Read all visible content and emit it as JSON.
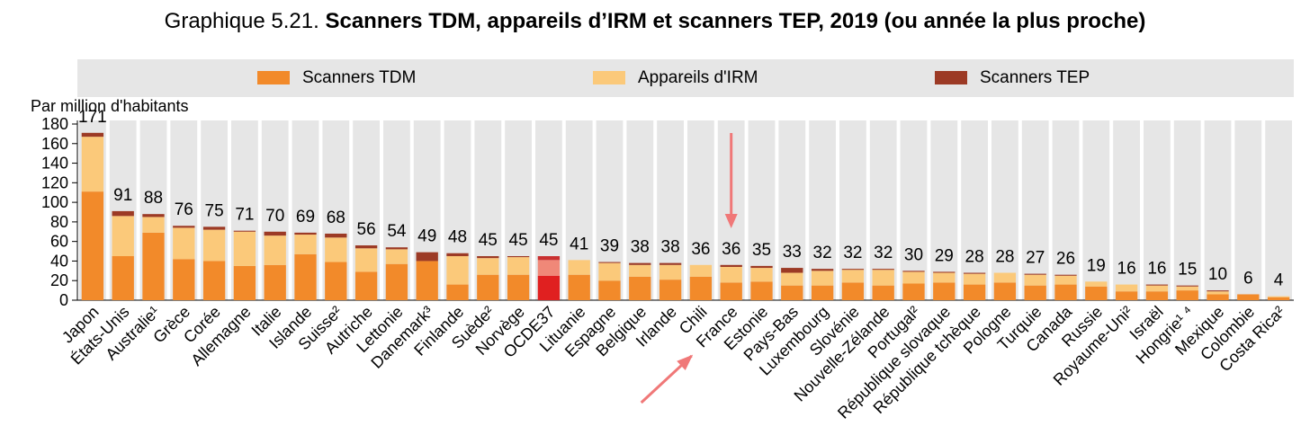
{
  "title": {
    "prefix": "Graphique 5.21.",
    "main": "Scanners TDM, appareils d’IRM et scanners TEP, 2019 (ou année la plus proche)"
  },
  "legend": [
    {
      "label": "Scanners TDM",
      "color": "#f28a2a"
    },
    {
      "label": "Appareils d'IRM",
      "color": "#fbc97a"
    },
    {
      "label": "Scanners TEP",
      "color": "#9c3a25"
    }
  ],
  "colors": {
    "tdm": "#f28a2a",
    "irm": "#fbc97a",
    "tep": "#9c3a25",
    "oecd_tdm": "#e02020",
    "oecd_irm": "#f08878",
    "oecd_tep": "#c93030",
    "column_bg": "#e6e6e6",
    "annotation_arrow": "#f07878"
  },
  "chart_data": {
    "type": "bar",
    "stacked": true,
    "ylabel": "Par million d'habitants",
    "ylim": [
      0,
      180
    ],
    "yticks": [
      0,
      20,
      40,
      60,
      80,
      100,
      120,
      140,
      160,
      180
    ],
    "categories": [
      "Japon",
      "États-Unis",
      "Australie¹",
      "Grèce",
      "Corée",
      "Allemagne",
      "Italie",
      "Islande",
      "Suisse²",
      "Autriche",
      "Lettonie",
      "Danemark³",
      "Finlande",
      "Suède²",
      "Norvège",
      "OCDE37",
      "Lituanie",
      "Espagne",
      "Belgique",
      "Irlande",
      "Chili",
      "France",
      "Estonie",
      "Pays-Bas",
      "Luxembourg",
      "Slovénie",
      "Nouvelle-Zélande",
      "Portugal²",
      "République slovaque",
      "République tchèque",
      "Pologne",
      "Turquie",
      "Canada",
      "Russie",
      "Royaume-Uni²",
      "Israël",
      "Hongrie¹ ⁴",
      "Mexique",
      "Colombie",
      "Costa Rica²"
    ],
    "highlight_category": "OCDE37",
    "annotated_category": "France",
    "series": [
      {
        "name": "Scanners TDM",
        "values": [
          111,
          45,
          69,
          42,
          40,
          35,
          36,
          47,
          39,
          29,
          37,
          40,
          16,
          26,
          26,
          25,
          26,
          20,
          24,
          21,
          24,
          18,
          19,
          15,
          15,
          18,
          15,
          17,
          18,
          16,
          18,
          15,
          16,
          14,
          9,
          9,
          10,
          6,
          6,
          3
        ]
      },
      {
        "name": "Appareils d'IRM",
        "values": [
          56,
          41,
          16,
          32,
          32,
          35,
          30,
          20,
          25,
          24,
          15,
          0,
          29,
          17,
          18,
          16,
          15,
          18,
          12,
          15,
          12,
          16,
          14,
          13,
          15,
          13,
          16,
          12,
          10,
          11,
          10,
          11,
          9,
          5,
          7,
          6,
          4,
          3,
          0,
          1
        ]
      },
      {
        "name": "Scanners TEP",
        "values": [
          4,
          5,
          3,
          2,
          3,
          1,
          4,
          2,
          4,
          3,
          2,
          9,
          3,
          2,
          1,
          4,
          0,
          1,
          2,
          2,
          0,
          2,
          2,
          5,
          2,
          1,
          1,
          1,
          1,
          1,
          0,
          1,
          1,
          0,
          0,
          1,
          1,
          1,
          0,
          0
        ]
      }
    ],
    "totals": [
      171,
      91,
      88,
      76,
      75,
      71,
      70,
      69,
      68,
      56,
      54,
      49,
      48,
      45,
      45,
      45,
      41,
      39,
      38,
      38,
      36,
      36,
      35,
      33,
      32,
      32,
      32,
      30,
      29,
      28,
      28,
      27,
      26,
      19,
      16,
      16,
      15,
      10,
      6,
      4
    ]
  }
}
